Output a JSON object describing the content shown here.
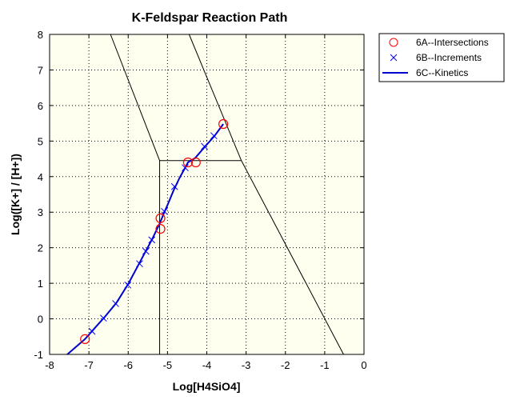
{
  "colors": {
    "plot_background": "#fffff0",
    "axis": "#000000",
    "grid": "#000000",
    "boundary": "#000000",
    "intersections": "#ff0000",
    "increments": "#0000ff",
    "kinetics": "#0000cc"
  },
  "chart_data": {
    "type": "scatter",
    "title": "K-Feldspar Reaction Path",
    "xlabel": "Log[H4SiO4]",
    "ylabel": "Log([K+] / [H+])",
    "xlim": [
      -8,
      0
    ],
    "ylim": [
      -1,
      8
    ],
    "xticks": [
      -8,
      -7,
      -6,
      -5,
      -4,
      -3,
      -2,
      -1,
      0
    ],
    "yticks": [
      -1,
      0,
      1,
      2,
      3,
      4,
      5,
      6,
      7,
      8
    ],
    "xtick_labels": [
      "-8",
      "-7",
      "-6",
      "-5",
      "-4",
      "-3",
      "-2",
      "-1",
      "0"
    ],
    "ytick_labels": [
      "-1",
      "0",
      "1",
      "2",
      "3",
      "4",
      "5",
      "6",
      "7",
      "8"
    ],
    "grid": true,
    "grid_style": "dotted",
    "legend_position": "outside-top-right",
    "boundaries": [
      {
        "points": [
          [
            -6.45,
            8
          ],
          [
            -5.2,
            4.45
          ]
        ]
      },
      {
        "points": [
          [
            -4.45,
            8
          ],
          [
            -3.12,
            4.45
          ]
        ]
      },
      {
        "points": [
          [
            -5.2,
            4.45
          ],
          [
            -3.12,
            4.45
          ]
        ]
      },
      {
        "points": [
          [
            -5.2,
            4.45
          ],
          [
            -5.2,
            -1
          ]
        ]
      },
      {
        "points": [
          [
            -3.12,
            4.45
          ],
          [
            -0.52,
            -1
          ]
        ]
      }
    ],
    "series": [
      {
        "name": "6A--Intersections",
        "marker": "circle",
        "x": [
          -7.1,
          -5.18,
          -5.18,
          -4.48,
          -4.28,
          -3.58
        ],
        "y": [
          -0.57,
          2.53,
          2.83,
          4.4,
          4.4,
          5.48
        ]
      },
      {
        "name": "6B--Increments",
        "marker": "x",
        "x": [
          -6.92,
          -6.63,
          -6.32,
          -6.01,
          -5.71,
          -5.55,
          -5.4,
          -5.08,
          -4.82,
          -4.55,
          -4.06,
          -3.82
        ],
        "y": [
          -0.35,
          0.02,
          0.43,
          0.95,
          1.55,
          1.9,
          2.22,
          3.02,
          3.72,
          4.25,
          4.85,
          5.15
        ]
      },
      {
        "name": "6C--Kinetics",
        "marker": "line",
        "x": [
          -7.55,
          -7.1,
          -6.9,
          -6.6,
          -6.3,
          -6.0,
          -5.7,
          -5.4,
          -5.19,
          -5.1,
          -5.0,
          -4.85,
          -4.7,
          -4.55,
          -4.48,
          -4.3,
          -4.0,
          -3.8,
          -3.58
        ],
        "y": [
          -1.0,
          -0.57,
          -0.32,
          0.05,
          0.45,
          0.98,
          1.6,
          2.22,
          2.7,
          2.95,
          3.2,
          3.6,
          3.95,
          4.25,
          4.4,
          4.52,
          4.9,
          5.15,
          5.48
        ]
      }
    ]
  }
}
